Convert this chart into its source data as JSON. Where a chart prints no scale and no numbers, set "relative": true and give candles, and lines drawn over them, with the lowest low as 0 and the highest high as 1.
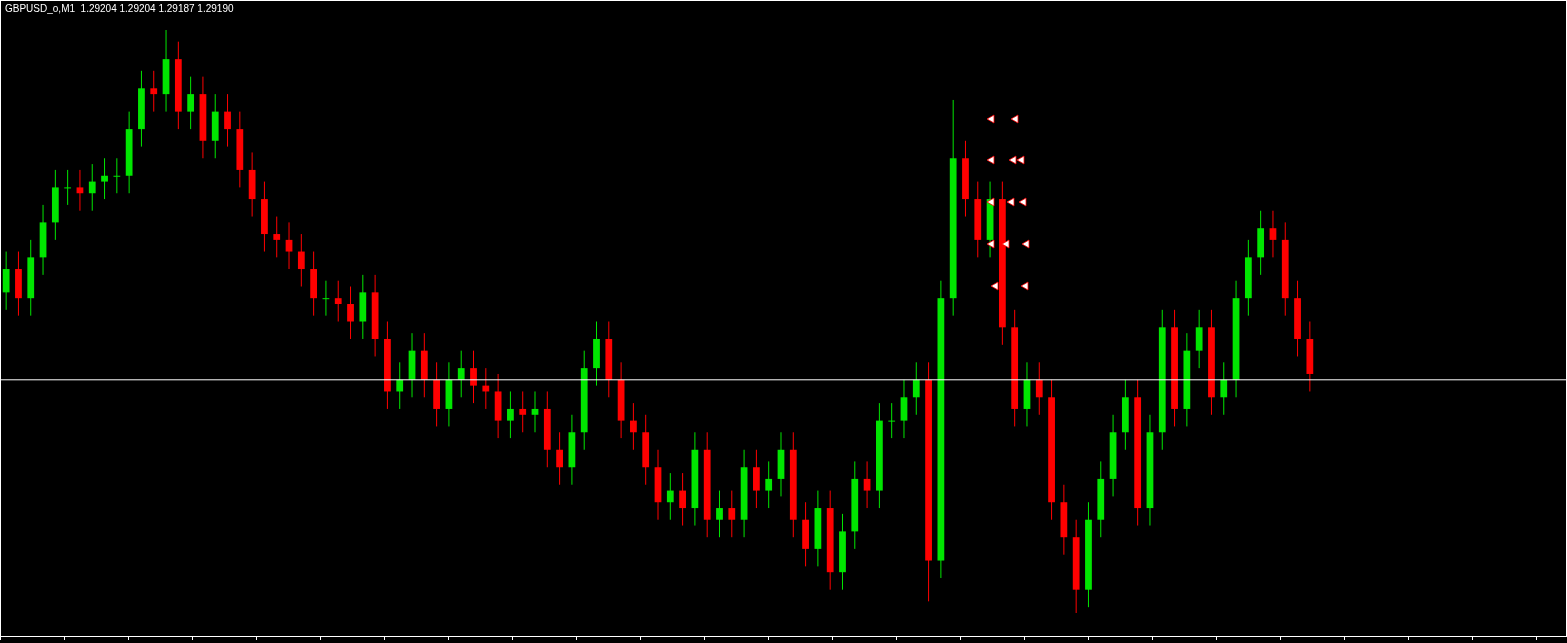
{
  "chart_data": {
    "type": "candlestick",
    "title": "GBPUSD_o,M1  1.29204 1.29204 1.29187 1.29190",
    "relative": true,
    "colors": [
      "#00e600",
      "#ff0000",
      "#00e600",
      "#00e600",
      "#00e600",
      "#00e600",
      "#ff0000",
      "#00e600",
      "#00e600",
      "#00e600",
      "#00e600",
      "#00e600",
      "#ff0000",
      "#00e600",
      "#ff0000",
      "#00e600",
      "#ff0000",
      "#00e600",
      "#ff0000",
      "#ff0000",
      "#ff0000",
      "#ff0000",
      "#ff0000",
      "#ff0000",
      "#ff0000",
      "#ff0000",
      "#00e600",
      "#ff0000",
      "#ff0000",
      "#00e600",
      "#ff0000",
      "#ff0000",
      "#00e600",
      "#00e600",
      "#ff0000",
      "#ff0000",
      "#00e600",
      "#00e600",
      "#ff0000",
      "#ff0000",
      "#ff0000",
      "#00e600",
      "#ff0000",
      "#00e600",
      "#ff0000",
      "#ff0000",
      "#00e600",
      "#00e600",
      "#00e600",
      "#ff0000",
      "#ff0000",
      "#ff0000",
      "#ff0000",
      "#ff0000",
      "#00e600",
      "#ff0000",
      "#00e600",
      "#ff0000",
      "#00e600",
      "#ff0000",
      "#00e600",
      "#ff0000",
      "#00e600",
      "#00e600",
      "#ff0000",
      "#ff0000",
      "#00e600",
      "#ff0000",
      "#00e600",
      "#00e600",
      "#ff0000",
      "#00e600",
      "#00e600",
      "#00e600",
      "#00e600",
      "#ff0000",
      "#00e600",
      "#00e600",
      "#ff0000",
      "#ff0000",
      "#00e600",
      "#ff0000",
      "#ff0000",
      "#00e600",
      "#ff0000",
      "#ff0000",
      "#ff0000",
      "#ff0000",
      "#00e600",
      "#00e600",
      "#00e600",
      "#00e600",
      "#ff0000",
      "#00e600",
      "#00e600",
      "#ff0000",
      "#00e600",
      "#00e600",
      "#ff0000",
      "#00e600",
      "#00e600",
      "#00e600",
      "#00e600",
      "#ff0000",
      "#ff0000",
      "#ff0000",
      "#ff0000"
    ],
    "categories": [
      null,
      null,
      null,
      null,
      null,
      null,
      null,
      null,
      null,
      null,
      null,
      null,
      null,
      null,
      null,
      null,
      null,
      null,
      null,
      null,
      null,
      null,
      null,
      null,
      null,
      null,
      null,
      null,
      null,
      null,
      null,
      null,
      null,
      null,
      null,
      null,
      null,
      null,
      null,
      null,
      null,
      null,
      null,
      null,
      null,
      null,
      null,
      null,
      null,
      null,
      null,
      null,
      null,
      null,
      null,
      null,
      null,
      null,
      null,
      null,
      null,
      null,
      null,
      null,
      null,
      null,
      null,
      null,
      null,
      null,
      null,
      null,
      null,
      null,
      null,
      null,
      null,
      null,
      null,
      null,
      null,
      null,
      null,
      null,
      null,
      null,
      null,
      null,
      null,
      null,
      null,
      null,
      null,
      null,
      null,
      null,
      null,
      null,
      null,
      null,
      null,
      null,
      null,
      null,
      null,
      null,
      null
    ],
    "ohlc": [
      [
        0.55,
        0.62,
        0.52,
        0.59
      ],
      [
        0.59,
        0.62,
        0.51,
        0.54
      ],
      [
        0.54,
        0.64,
        0.51,
        0.61
      ],
      [
        0.61,
        0.7,
        0.58,
        0.67
      ],
      [
        0.67,
        0.76,
        0.64,
        0.73
      ],
      [
        0.73,
        0.76,
        0.7,
        0.73
      ],
      [
        0.73,
        0.76,
        0.69,
        0.72
      ],
      [
        0.72,
        0.77,
        0.69,
        0.74
      ],
      [
        0.74,
        0.78,
        0.71,
        0.75
      ],
      [
        0.75,
        0.78,
        0.72,
        0.75
      ],
      [
        0.75,
        0.86,
        0.72,
        0.83
      ],
      [
        0.83,
        0.93,
        0.8,
        0.9
      ],
      [
        0.9,
        0.93,
        0.86,
        0.89
      ],
      [
        0.89,
        1.0,
        0.86,
        0.95
      ],
      [
        0.95,
        0.98,
        0.83,
        0.86
      ],
      [
        0.86,
        0.92,
        0.83,
        0.89
      ],
      [
        0.89,
        0.92,
        0.78,
        0.81
      ],
      [
        0.81,
        0.89,
        0.78,
        0.86
      ],
      [
        0.86,
        0.89,
        0.8,
        0.83
      ],
      [
        0.83,
        0.86,
        0.73,
        0.76
      ],
      [
        0.76,
        0.79,
        0.68,
        0.71
      ],
      [
        0.71,
        0.74,
        0.62,
        0.65
      ],
      [
        0.65,
        0.68,
        0.61,
        0.64
      ],
      [
        0.64,
        0.67,
        0.59,
        0.62
      ],
      [
        0.62,
        0.65,
        0.56,
        0.59
      ],
      [
        0.59,
        0.62,
        0.51,
        0.54
      ],
      [
        0.54,
        0.57,
        0.51,
        0.54
      ],
      [
        0.54,
        0.57,
        0.5,
        0.53
      ],
      [
        0.53,
        0.56,
        0.47,
        0.5
      ],
      [
        0.5,
        0.58,
        0.47,
        0.55
      ],
      [
        0.55,
        0.58,
        0.44,
        0.47
      ],
      [
        0.47,
        0.5,
        0.35,
        0.38
      ],
      [
        0.38,
        0.43,
        0.35,
        0.4
      ],
      [
        0.4,
        0.48,
        0.37,
        0.45
      ],
      [
        0.45,
        0.48,
        0.37,
        0.4
      ],
      [
        0.4,
        0.43,
        0.32,
        0.35
      ],
      [
        0.35,
        0.43,
        0.32,
        0.4
      ],
      [
        0.4,
        0.45,
        0.37,
        0.42
      ],
      [
        0.42,
        0.45,
        0.36,
        0.39
      ],
      [
        0.39,
        0.42,
        0.35,
        0.38
      ],
      [
        0.38,
        0.41,
        0.3,
        0.33
      ],
      [
        0.33,
        0.38,
        0.3,
        0.35
      ],
      [
        0.35,
        0.38,
        0.31,
        0.34
      ],
      [
        0.34,
        0.38,
        0.31,
        0.35
      ],
      [
        0.35,
        0.38,
        0.25,
        0.28
      ],
      [
        0.28,
        0.31,
        0.22,
        0.25
      ],
      [
        0.25,
        0.34,
        0.22,
        0.31
      ],
      [
        0.31,
        0.45,
        0.28,
        0.42
      ],
      [
        0.42,
        0.5,
        0.39,
        0.47
      ],
      [
        0.47,
        0.5,
        0.37,
        0.4
      ],
      [
        0.4,
        0.43,
        0.3,
        0.33
      ],
      [
        0.33,
        0.36,
        0.28,
        0.31
      ],
      [
        0.31,
        0.34,
        0.22,
        0.25
      ],
      [
        0.25,
        0.28,
        0.16,
        0.19
      ],
      [
        0.19,
        0.24,
        0.16,
        0.21
      ],
      [
        0.21,
        0.24,
        0.15,
        0.18
      ],
      [
        0.18,
        0.31,
        0.15,
        0.28
      ],
      [
        0.28,
        0.31,
        0.13,
        0.16
      ],
      [
        0.16,
        0.21,
        0.13,
        0.18
      ],
      [
        0.18,
        0.21,
        0.13,
        0.16
      ],
      [
        0.16,
        0.28,
        0.13,
        0.25
      ],
      [
        0.25,
        0.28,
        0.18,
        0.21
      ],
      [
        0.21,
        0.26,
        0.18,
        0.23
      ],
      [
        0.23,
        0.31,
        0.2,
        0.28
      ],
      [
        0.28,
        0.31,
        0.13,
        0.16
      ],
      [
        0.16,
        0.19,
        0.08,
        0.11
      ],
      [
        0.11,
        0.21,
        0.08,
        0.18
      ],
      [
        0.18,
        0.21,
        0.04,
        0.07
      ],
      [
        0.07,
        0.17,
        0.04,
        0.14
      ],
      [
        0.14,
        0.26,
        0.11,
        0.23
      ],
      [
        0.23,
        0.26,
        0.18,
        0.21
      ],
      [
        0.21,
        0.36,
        0.18,
        0.33
      ],
      [
        0.33,
        0.36,
        0.3,
        0.33
      ],
      [
        0.33,
        0.4,
        0.3,
        0.37
      ],
      [
        0.37,
        0.43,
        0.34,
        0.4
      ],
      [
        0.4,
        0.43,
        0.02,
        0.09
      ],
      [
        0.09,
        0.57,
        0.06,
        0.54
      ],
      [
        0.54,
        0.88,
        0.51,
        0.78
      ],
      [
        0.78,
        0.81,
        0.68,
        0.71
      ],
      [
        0.71,
        0.74,
        0.61,
        0.64
      ],
      [
        0.64,
        0.74,
        0.61,
        0.71
      ],
      [
        0.71,
        0.74,
        0.46,
        0.49
      ],
      [
        0.49,
        0.52,
        0.32,
        0.35
      ],
      [
        0.35,
        0.43,
        0.32,
        0.4
      ],
      [
        0.4,
        0.43,
        0.34,
        0.37
      ],
      [
        0.37,
        0.4,
        0.16,
        0.19
      ],
      [
        0.19,
        0.22,
        0.1,
        0.13
      ],
      [
        0.13,
        0.16,
        0.0,
        0.04
      ],
      [
        0.04,
        0.19,
        0.01,
        0.16
      ],
      [
        0.16,
        0.26,
        0.13,
        0.23
      ],
      [
        0.23,
        0.34,
        0.2,
        0.31
      ],
      [
        0.31,
        0.4,
        0.28,
        0.37
      ],
      [
        0.37,
        0.4,
        0.15,
        0.18
      ],
      [
        0.18,
        0.34,
        0.15,
        0.31
      ],
      [
        0.31,
        0.52,
        0.28,
        0.49
      ],
      [
        0.49,
        0.52,
        0.32,
        0.35
      ],
      [
        0.35,
        0.48,
        0.32,
        0.45
      ],
      [
        0.45,
        0.52,
        0.42,
        0.49
      ],
      [
        0.49,
        0.52,
        0.34,
        0.37
      ],
      [
        0.37,
        0.43,
        0.34,
        0.4
      ],
      [
        0.4,
        0.57,
        0.37,
        0.54
      ],
      [
        0.54,
        0.64,
        0.51,
        0.61
      ],
      [
        0.61,
        0.69,
        0.58,
        0.66
      ],
      [
        0.66,
        0.69,
        0.61,
        0.64
      ],
      [
        0.64,
        0.67,
        0.51,
        0.54
      ],
      [
        0.54,
        0.57,
        0.44,
        0.47
      ],
      [
        0.47,
        0.5,
        0.38,
        0.41
      ]
    ],
    "ref_lines": [
      {
        "axis": "y",
        "value": 0.4,
        "color": "#ffffff"
      }
    ]
  }
}
